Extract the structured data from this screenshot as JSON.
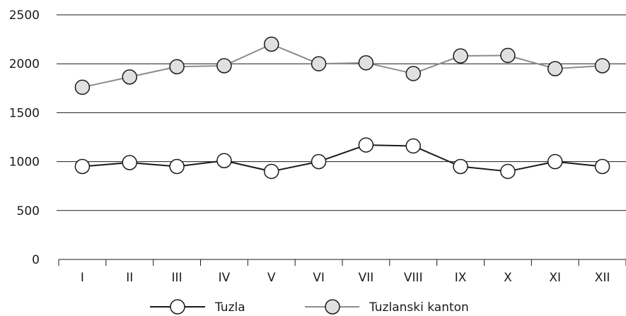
{
  "chart_data": {
    "type": "line",
    "title": "",
    "xlabel": "",
    "ylabel": "",
    "categories": [
      "I",
      "II",
      "III",
      "IV",
      "V",
      "VI",
      "VII",
      "VIII",
      "IX",
      "X",
      "XI",
      "XII"
    ],
    "ylim": [
      0,
      2500
    ],
    "yticks": [
      0,
      500,
      1000,
      1500,
      2000,
      2500
    ],
    "grid": true,
    "legend_position": "bottom",
    "series": [
      {
        "name": "Tuzla",
        "values": [
          950,
          990,
          950,
          1010,
          900,
          1000,
          1170,
          1160,
          950,
          900,
          1000,
          950
        ],
        "line_color": "#1a1a1a",
        "marker_fill": "#ffffff"
      },
      {
        "name": "Tuzlanski kanton",
        "values": [
          1760,
          1865,
          1970,
          1980,
          2200,
          2000,
          2010,
          1900,
          2080,
          2085,
          1950,
          1980
        ],
        "line_color": "#8c8c8c",
        "marker_fill": "#e0e0e0"
      }
    ],
    "colors": {
      "gridline": "#1a1a1a",
      "axis": "#1a1a1a",
      "marker_stroke": "#1a1a1a"
    }
  }
}
